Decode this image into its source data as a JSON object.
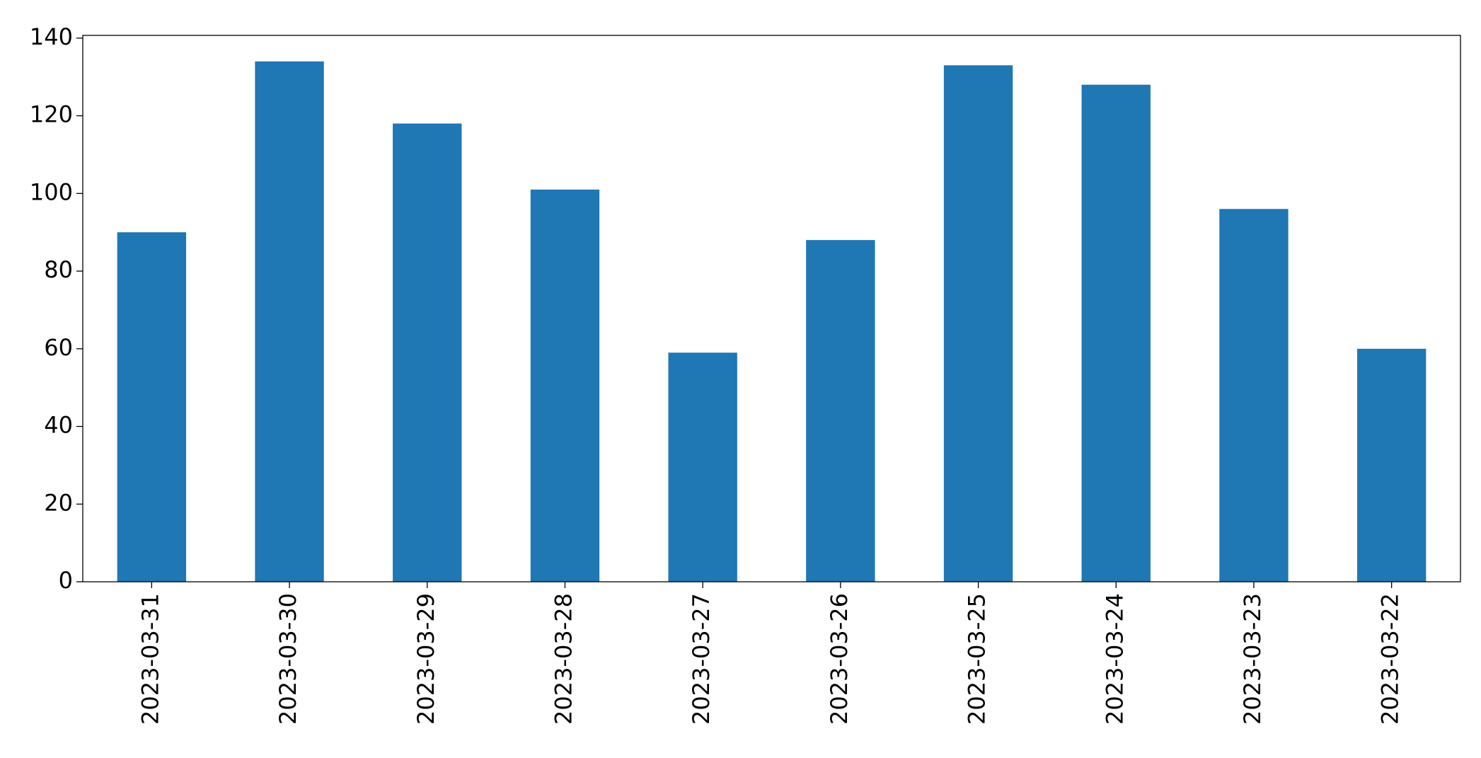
{
  "chart_data": {
    "type": "bar",
    "categories": [
      "2023-03-31",
      "2023-03-30",
      "2023-03-29",
      "2023-03-28",
      "2023-03-27",
      "2023-03-26",
      "2023-03-25",
      "2023-03-24",
      "2023-03-23",
      "2023-03-22"
    ],
    "values": [
      90,
      134,
      118,
      101,
      59,
      88,
      133,
      128,
      96,
      60
    ],
    "color": "#1f77b4",
    "ylim": [
      0,
      140.7
    ],
    "yticks": [
      0,
      20,
      40,
      60,
      80,
      100,
      120,
      140
    ],
    "grid": false
  }
}
